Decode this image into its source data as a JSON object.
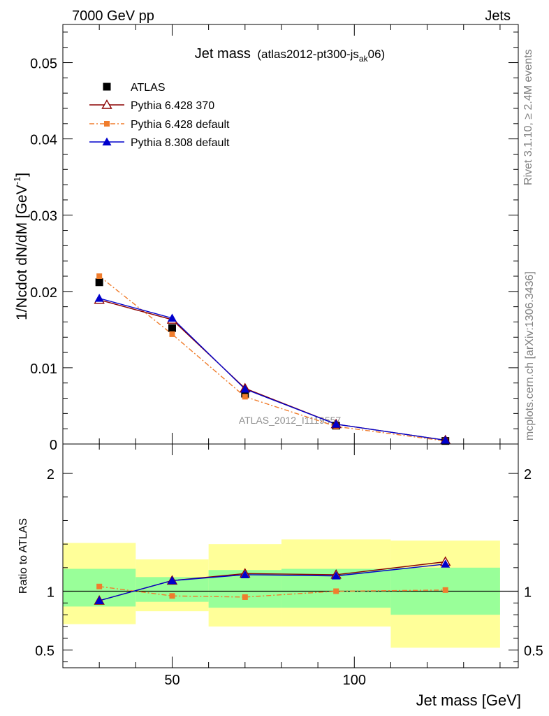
{
  "header": {
    "energy_label": "7000 GeV pp",
    "process_label": "Jets"
  },
  "side_labels": {
    "rivet": "Rivet 3.1.10, ≥ 2.4M events",
    "mcplots": "mcplots.cern.ch [arXiv:1306.3436]"
  },
  "watermark": "ATLAS_2012_I1119557",
  "plot_title": {
    "main": "Jet mass",
    "sub_prefix": "(atlas2012-pt300-js",
    "sub_subscript": "ak",
    "sub_suffix": "06)"
  },
  "colors": {
    "atlas": "#000000",
    "py6_370": "#8b0000",
    "py6_default": "#f07d2d",
    "py8": "#0000cc",
    "band_inner": "#99ff99",
    "band_outer": "#ffff99"
  },
  "chart_data": [
    {
      "type": "line",
      "panel": "main",
      "xlabel": "Jet mass [GeV]",
      "ylabel_main": "1/Ncdot dN/dM [GeV",
      "ylabel_sup": "-1",
      "ylabel_close": "]",
      "xlim": [
        20,
        145
      ],
      "ylim": [
        0,
        0.055
      ],
      "x_tick_labels": [
        "50",
        "100"
      ],
      "y_tick_labels": [
        "0",
        "0.01",
        "0.02",
        "0.03",
        "0.04",
        "0.05"
      ],
      "x": [
        30,
        50,
        70,
        95,
        125
      ],
      "series": [
        {
          "name": "ATLAS",
          "values": [
            0.0212,
            0.0152,
            0.0066,
            0.0024,
            0.0004
          ]
        },
        {
          "name": "Pythia 6.428 370",
          "values": [
            0.0189,
            0.0163,
            0.0073,
            0.0026,
            0.0005
          ]
        },
        {
          "name": "Pythia 6.428 default",
          "values": [
            0.022,
            0.0144,
            0.0062,
            0.0023,
            0.0004
          ]
        },
        {
          "name": "Pythia 8.308 default",
          "values": [
            0.0191,
            0.0165,
            0.0072,
            0.0026,
            0.0005
          ]
        }
      ]
    },
    {
      "type": "line",
      "panel": "ratio",
      "ylabel": "Ratio to ATLAS",
      "xlim": [
        20,
        145
      ],
      "ylim": [
        0.35,
        2.25
      ],
      "y_tick_labels": [
        "0.5",
        "1",
        "2"
      ],
      "bins": [
        [
          20,
          40
        ],
        [
          40,
          60
        ],
        [
          60,
          80
        ],
        [
          80,
          110
        ],
        [
          110,
          140
        ]
      ],
      "band_inner": [
        [
          0.87,
          1.19
        ],
        [
          0.91,
          1.12
        ],
        [
          0.86,
          1.18
        ],
        [
          0.86,
          1.19
        ],
        [
          0.8,
          1.2
        ]
      ],
      "band_outer": [
        [
          0.72,
          1.41
        ],
        [
          0.83,
          1.27
        ],
        [
          0.7,
          1.4
        ],
        [
          0.7,
          1.44
        ],
        [
          0.52,
          1.43
        ]
      ],
      "x": [
        30,
        50,
        70,
        95,
        125
      ],
      "series": [
        {
          "name": "Pythia 6.428 370",
          "values": [
            0.92,
            1.09,
            1.15,
            1.14,
            1.25
          ]
        },
        {
          "name": "Pythia 6.428 default",
          "values": [
            1.04,
            0.96,
            0.95,
            1.0,
            1.01
          ]
        },
        {
          "name": "Pythia 8.308 default",
          "values": [
            0.92,
            1.09,
            1.14,
            1.13,
            1.23
          ]
        }
      ]
    }
  ]
}
